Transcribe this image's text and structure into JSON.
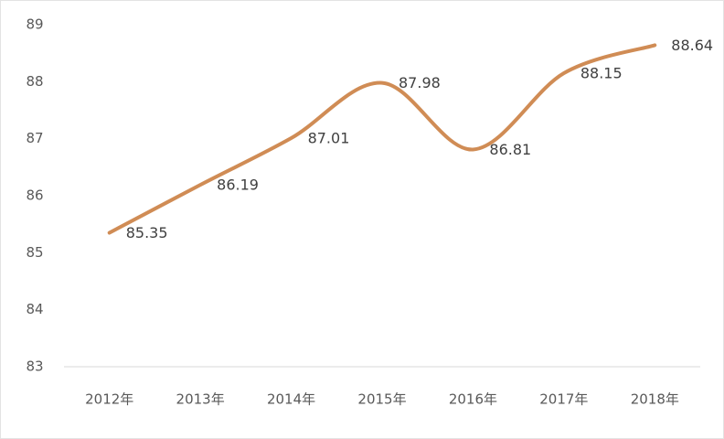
{
  "chart_data": {
    "type": "line",
    "categories": [
      "2012年",
      "2013年",
      "2014年",
      "2015年",
      "2016年",
      "2017年",
      "2018年"
    ],
    "values": [
      85.35,
      86.19,
      87.01,
      87.98,
      86.81,
      88.15,
      88.64
    ],
    "color": "#d08c55",
    "ylim": [
      83,
      89
    ],
    "yticks": [
      83,
      84,
      85,
      86,
      87,
      88,
      89
    ],
    "smooth": true,
    "data_labels": true
  }
}
